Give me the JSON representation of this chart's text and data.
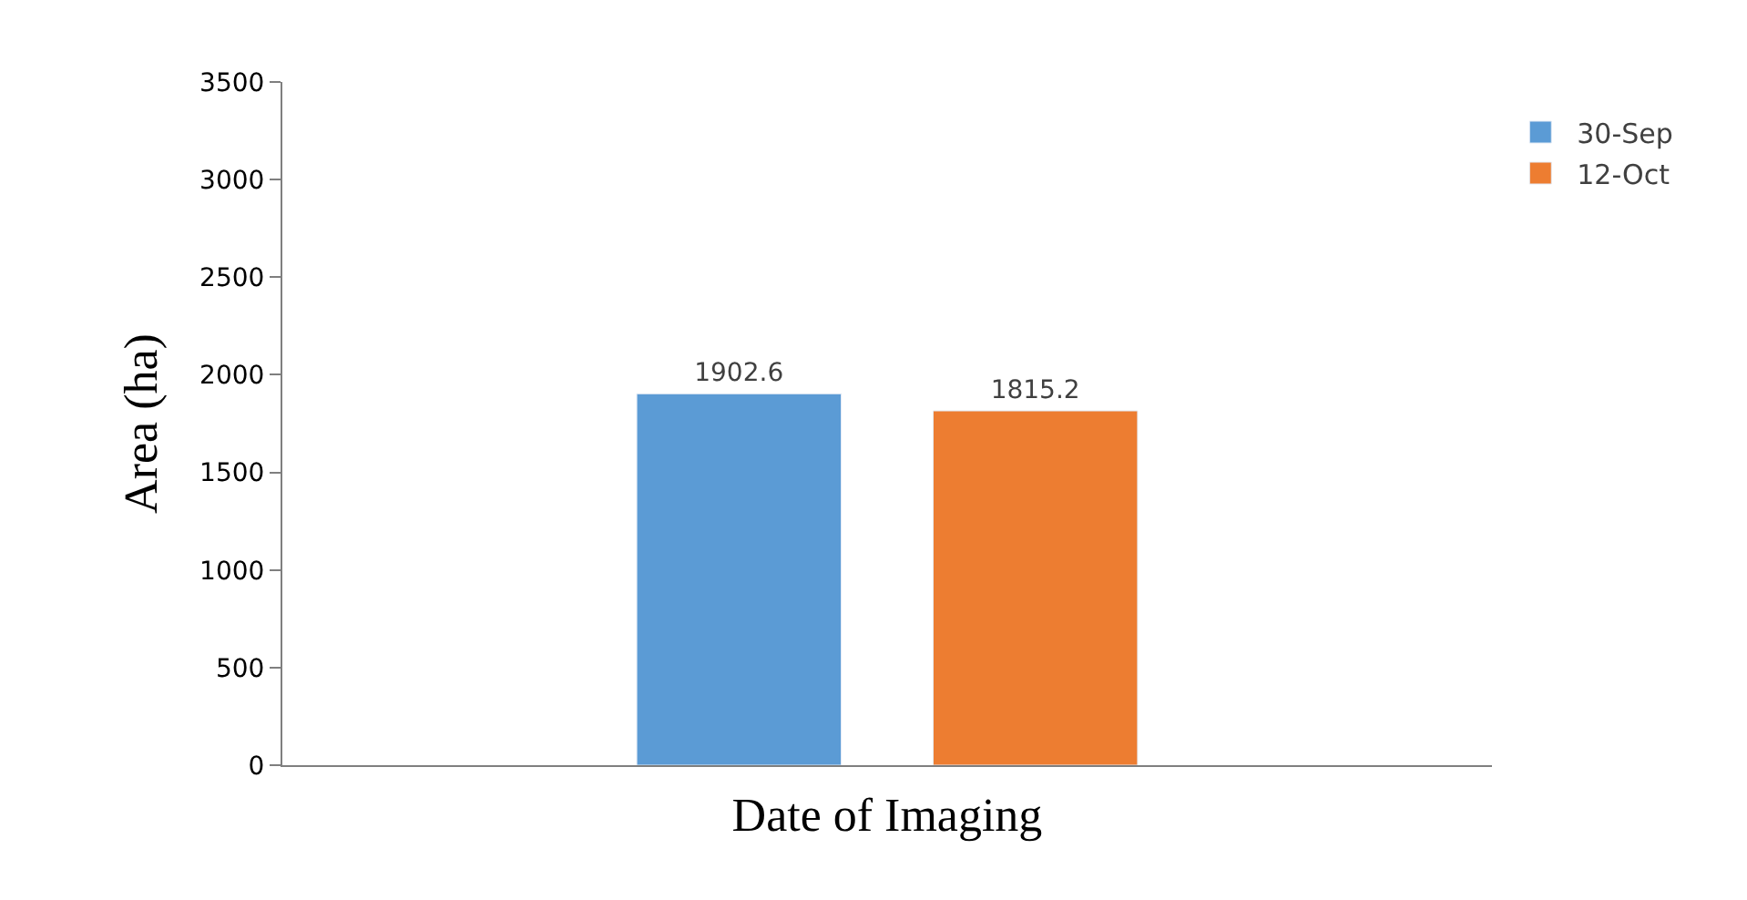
{
  "chart_data": {
    "type": "bar",
    "xlabel": "Date of Imaging",
    "ylabel": "Area (ha)",
    "categories": [
      null
    ],
    "series": [
      {
        "name": "30-Sep",
        "color": "#5b9bd5",
        "values": [
          1902.6
        ]
      },
      {
        "name": "12-Oct",
        "color": "#ed7d31",
        "values": [
          1815.2
        ]
      }
    ],
    "ylim": [
      0,
      3500
    ],
    "yticks": [
      0,
      500,
      1000,
      1500,
      2000,
      2500,
      3000,
      3500
    ],
    "legend": "top right",
    "data_labels": true
  }
}
